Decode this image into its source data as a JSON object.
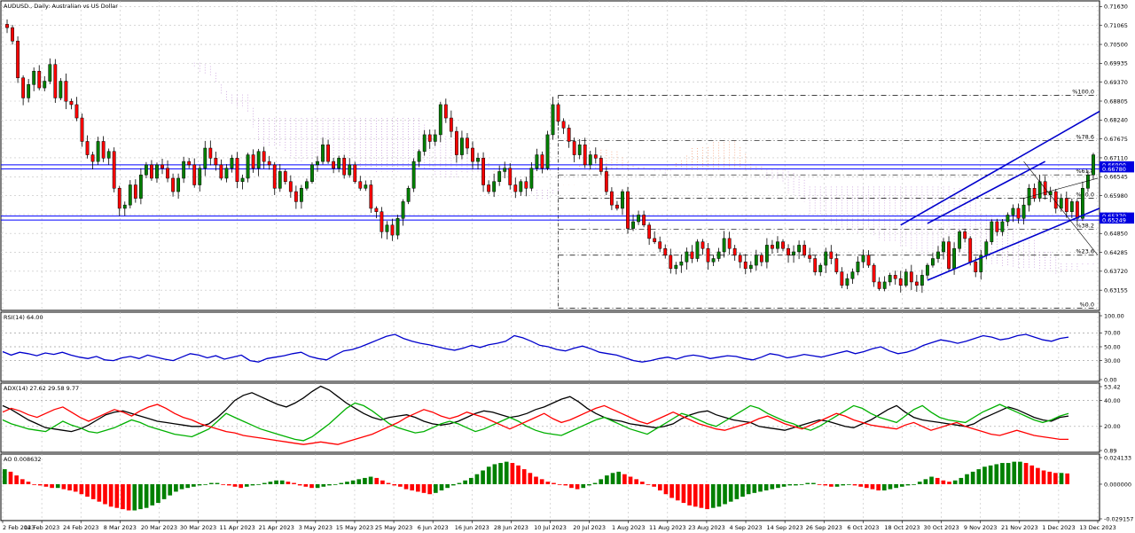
{
  "chart_data": [
    {
      "type": "candlestick",
      "title": "AUDUSD., Daily:  Australian vs US Dollar",
      "ylim": [
        0.6255,
        0.718
      ],
      "y_ticks": [
        "0.71630",
        "0.71065",
        "0.70500",
        "0.69935",
        "0.69370",
        "0.68805",
        "0.68240",
        "0.67675",
        "0.67110",
        "0.66545",
        "0.65980",
        "0.65415",
        "0.64850",
        "0.64285",
        "0.63720",
        "0.63155"
      ],
      "x_ticks": [
        "2 Feb 2023",
        "14 Feb 2023",
        "24 Feb 2023",
        "8 Mar 2023",
        "20 Mar 2023",
        "30 Mar 2023",
        "11 Apr 2023",
        "21 Apr 2023",
        "3 May 2023",
        "15 May 2023",
        "25 May 2023",
        "6 Jun 2023",
        "16 Jun 2023",
        "28 Jun 2023",
        "10 Jul 2023",
        "20 Jul 2023",
        "1 Aug 2023",
        "11 Aug 2023",
        "23 Aug 2023",
        "4 Sep 2023",
        "14 Sep 2023",
        "26 Sep 2023",
        "6 Oct 2023",
        "18 Oct 2023",
        "30 Oct 2023",
        "9 Nov 2023",
        "21 Nov 2023",
        "1 Dec 2023",
        "13 Dec 2023"
      ],
      "closes": [
        0.71,
        0.706,
        0.695,
        0.689,
        0.693,
        0.697,
        0.692,
        0.694,
        0.699,
        0.689,
        0.694,
        0.688,
        0.687,
        0.683,
        0.676,
        0.672,
        0.67,
        0.676,
        0.671,
        0.673,
        0.662,
        0.656,
        0.657,
        0.663,
        0.659,
        0.666,
        0.669,
        0.665,
        0.669,
        0.668,
        0.665,
        0.661,
        0.665,
        0.67,
        0.669,
        0.663,
        0.668,
        0.674,
        0.671,
        0.669,
        0.665,
        0.668,
        0.671,
        0.664,
        0.665,
        0.672,
        0.668,
        0.673,
        0.67,
        0.669,
        0.662,
        0.667,
        0.664,
        0.661,
        0.658,
        0.662,
        0.664,
        0.669,
        0.67,
        0.675,
        0.67,
        0.668,
        0.671,
        0.666,
        0.669,
        0.664,
        0.662,
        0.663,
        0.656,
        0.655,
        0.649,
        0.651,
        0.648,
        0.653,
        0.658,
        0.662,
        0.67,
        0.673,
        0.678,
        0.676,
        0.678,
        0.687,
        0.683,
        0.679,
        0.672,
        0.677,
        0.674,
        0.67,
        0.671,
        0.663,
        0.661,
        0.664,
        0.667,
        0.668,
        0.663,
        0.661,
        0.664,
        0.662,
        0.668,
        0.672,
        0.668,
        0.678,
        0.687,
        0.682,
        0.68,
        0.676,
        0.672,
        0.675,
        0.669,
        0.672,
        0.671,
        0.667,
        0.661,
        0.657,
        0.656,
        0.661,
        0.65,
        0.652,
        0.654,
        0.651,
        0.647,
        0.646,
        0.644,
        0.642,
        0.638,
        0.639,
        0.64,
        0.643,
        0.641,
        0.646,
        0.644,
        0.64,
        0.641,
        0.643,
        0.647,
        0.644,
        0.642,
        0.64,
        0.638,
        0.639,
        0.642,
        0.64,
        0.645,
        0.644,
        0.646,
        0.644,
        0.642,
        0.643,
        0.645,
        0.642,
        0.641,
        0.637,
        0.639,
        0.643,
        0.641,
        0.637,
        0.633,
        0.635,
        0.637,
        0.64,
        0.642,
        0.639,
        0.634,
        0.632,
        0.634,
        0.636,
        0.635,
        0.633,
        0.637,
        0.634,
        0.633,
        0.636,
        0.639,
        0.641,
        0.643,
        0.646,
        0.638,
        0.644,
        0.649,
        0.647,
        0.64,
        0.637,
        0.642,
        0.646,
        0.652,
        0.649,
        0.652,
        0.654,
        0.656,
        0.653,
        0.657,
        0.662,
        0.659,
        0.664,
        0.66,
        0.661,
        0.656,
        0.659,
        0.655,
        0.658,
        0.653,
        0.662,
        0.666,
        0.672
      ],
      "vol_index_label": "",
      "horizontal_levels": [
        {
          "label": "0.66900",
          "value": 0.669
        },
        {
          "label": "0.66780",
          "value": 0.6678
        },
        {
          "label": "0.65370",
          "value": 0.6537
        },
        {
          "label": "0.65249",
          "value": 0.6525
        }
      ],
      "fibonacci": [
        {
          "label": "%100.0",
          "value": 0.6898
        },
        {
          "label": "%78.6",
          "value": 0.6762
        },
        {
          "label": "%61.8",
          "value": 0.666
        },
        {
          "label": "%50.0",
          "value": 0.659
        },
        {
          "label": "%38.2",
          "value": 0.6498
        },
        {
          "label": "%23.6",
          "value": 0.642
        },
        {
          "label": "%0.0",
          "value": 0.6262
        }
      ],
      "colors": {
        "up": "#008000",
        "down": "#ff0000",
        "wick": "#000000",
        "channel": "#0000cc",
        "levels": "#0000ff",
        "cloud": "#f4a582",
        "cloud_alt": "#c9a0dc"
      }
    },
    {
      "type": "line",
      "title": "RSI(14) 64.00",
      "ylim": [
        0,
        100
      ],
      "y_ticks": [
        "100.00",
        "70.00",
        "50.00",
        "30.00",
        "0.00"
      ],
      "levels": [
        70,
        50,
        30
      ],
      "series": [
        {
          "values": [
            43,
            38,
            42,
            40,
            37,
            41,
            39,
            42,
            38,
            35,
            33,
            36,
            31,
            30,
            34,
            36,
            33,
            38,
            35,
            32,
            30,
            35,
            40,
            38,
            34,
            37,
            32,
            35,
            38,
            30,
            28,
            33,
            35,
            37,
            40,
            42,
            36,
            33,
            31,
            38,
            44,
            46,
            50,
            55,
            60,
            65,
            68,
            62,
            58,
            55,
            53,
            50,
            47,
            45,
            48,
            52,
            49,
            53,
            55,
            58,
            66,
            63,
            58,
            52,
            50,
            46,
            44,
            48,
            51,
            47,
            42,
            40,
            38,
            34,
            30,
            28,
            30,
            33,
            35,
            32,
            36,
            38,
            36,
            33,
            35,
            37,
            36,
            33,
            31,
            35,
            40,
            38,
            34,
            36,
            39,
            37,
            35,
            38,
            41,
            44,
            40,
            43,
            47,
            50,
            44,
            40,
            42,
            46,
            52,
            56,
            60,
            58,
            55,
            58,
            62,
            66,
            64,
            60,
            62,
            66,
            68,
            64,
            60,
            58,
            62,
            64
          ]
        }
      ],
      "colors": {
        "line": "#0000cc"
      }
    },
    {
      "type": "line",
      "title": "ADX(14) 27.62 29.58 9.77",
      "ylim": [
        0,
        53.42
      ],
      "y_ticks": [
        "53.42",
        "40.00",
        "20.00",
        "0.89"
      ],
      "levels": [
        40,
        20
      ],
      "series": [
        {
          "values": [
            36,
            33,
            29,
            25,
            22,
            19,
            18,
            17,
            16,
            18,
            21,
            25,
            29,
            31,
            32,
            30,
            28,
            26,
            24,
            23,
            22,
            21,
            20,
            20,
            22,
            27,
            33,
            40,
            44,
            46,
            43,
            40,
            37,
            35,
            38,
            42,
            47,
            51,
            48,
            43,
            38,
            34,
            30,
            27,
            25,
            27,
            28,
            29,
            27,
            24,
            22,
            21,
            22,
            24,
            27,
            30,
            32,
            31,
            29,
            27,
            28,
            30,
            33,
            35,
            38,
            41,
            43,
            39,
            34,
            30,
            27,
            25,
            24,
            22,
            21,
            20,
            19,
            20,
            22,
            26,
            29,
            31,
            32,
            29,
            27,
            25,
            24,
            23,
            20,
            19,
            18,
            17,
            19,
            21,
            23,
            25,
            24,
            22,
            20,
            19,
            22,
            25,
            29,
            33,
            36,
            31,
            27,
            25,
            24,
            23,
            22,
            21,
            20,
            22,
            26,
            29,
            32,
            35,
            33,
            30,
            27,
            25,
            24,
            27,
            28
          ]
        },
        {
          "values": [
            25,
            22,
            20,
            18,
            17,
            16,
            20,
            24,
            21,
            19,
            16,
            15,
            17,
            19,
            22,
            25,
            23,
            20,
            18,
            16,
            14,
            13,
            12,
            15,
            18,
            24,
            30,
            27,
            24,
            21,
            18,
            16,
            14,
            12,
            10,
            9,
            12,
            17,
            22,
            28,
            34,
            38,
            36,
            32,
            27,
            22,
            19,
            17,
            15,
            16,
            19,
            22,
            24,
            22,
            19,
            16,
            18,
            21,
            24,
            27,
            24,
            20,
            17,
            15,
            14,
            13,
            16,
            19,
            22,
            25,
            27,
            24,
            21,
            18,
            16,
            14,
            18,
            22,
            26,
            30,
            28,
            25,
            22,
            20,
            24,
            28,
            32,
            36,
            34,
            30,
            27,
            24,
            22,
            19,
            17,
            20,
            24,
            28,
            32,
            36,
            34,
            30,
            27,
            25,
            23,
            28,
            33,
            36,
            31,
            27,
            25,
            24,
            23,
            27,
            31,
            34,
            37,
            34,
            31,
            28,
            25,
            23,
            25,
            28,
            30
          ]
        },
        {
          "values": [
            31,
            34,
            32,
            29,
            27,
            30,
            33,
            35,
            31,
            27,
            24,
            27,
            30,
            33,
            31,
            28,
            32,
            35,
            37,
            34,
            30,
            27,
            25,
            22,
            20,
            18,
            16,
            15,
            13,
            12,
            11,
            10,
            9,
            8,
            7,
            6,
            7,
            8,
            7,
            6,
            8,
            10,
            12,
            14,
            17,
            20,
            23,
            27,
            30,
            33,
            31,
            28,
            26,
            28,
            31,
            29,
            27,
            24,
            21,
            18,
            21,
            24,
            27,
            30,
            26,
            23,
            25,
            28,
            31,
            34,
            36,
            33,
            30,
            27,
            24,
            22,
            25,
            28,
            31,
            28,
            25,
            22,
            20,
            18,
            17,
            19,
            21,
            23,
            26,
            28,
            25,
            22,
            20,
            18,
            21,
            24,
            27,
            30,
            28,
            25,
            23,
            21,
            20,
            19,
            18,
            21,
            23,
            20,
            17,
            19,
            21,
            23,
            20,
            18,
            16,
            14,
            13,
            15,
            17,
            15,
            13,
            12,
            11,
            10,
            10
          ]
        }
      ],
      "colors": {
        "adx": "#000000",
        "plus_di": "#00b000",
        "minus_di": "#ff0000"
      }
    },
    {
      "type": "bar",
      "title": "AO 0.008632",
      "ylim": [
        -0.029157,
        0.024133
      ],
      "y_ticks": [
        "0.024133",
        "0.000000",
        "-0.029157"
      ],
      "values": [
        0.012,
        0.01,
        0.007,
        0.004,
        0.002,
        0.0,
        -0.001,
        -0.002,
        -0.003,
        -0.003,
        -0.004,
        -0.005,
        -0.006,
        -0.008,
        -0.01,
        -0.012,
        -0.014,
        -0.016,
        -0.018,
        -0.019,
        -0.02,
        -0.021,
        -0.021,
        -0.02,
        -0.019,
        -0.017,
        -0.015,
        -0.012,
        -0.009,
        -0.006,
        -0.004,
        -0.003,
        -0.002,
        -0.001,
        0.0,
        0.001,
        0.001,
        0.0,
        -0.001,
        -0.002,
        -0.003,
        -0.002,
        -0.001,
        0.0,
        0.001,
        0.002,
        0.003,
        0.003,
        0.002,
        0.001,
        -0.001,
        -0.002,
        -0.003,
        -0.003,
        -0.002,
        -0.001,
        0.0,
        0.001,
        0.002,
        0.003,
        0.004,
        0.005,
        0.006,
        0.005,
        0.003,
        0.001,
        -0.001,
        -0.002,
        -0.004,
        -0.005,
        -0.006,
        -0.007,
        -0.008,
        -0.007,
        -0.005,
        -0.003,
        -0.001,
        0.001,
        0.003,
        0.005,
        0.008,
        0.011,
        0.014,
        0.016,
        0.017,
        0.018,
        0.017,
        0.015,
        0.012,
        0.009,
        0.006,
        0.004,
        0.002,
        0.001,
        0.0,
        -0.001,
        -0.003,
        -0.004,
        -0.003,
        -0.001,
        0.001,
        0.004,
        0.007,
        0.009,
        0.01,
        0.008,
        0.006,
        0.004,
        0.002,
        0.0,
        -0.002,
        -0.005,
        -0.008,
        -0.011,
        -0.013,
        -0.015,
        -0.017,
        -0.018,
        -0.019,
        -0.02,
        -0.019,
        -0.018,
        -0.016,
        -0.014,
        -0.012,
        -0.01,
        -0.008,
        -0.007,
        -0.006,
        -0.005,
        -0.004,
        -0.003,
        -0.002,
        -0.001,
        -0.001,
        0.0,
        0.001,
        0.001,
        0.0,
        -0.001,
        -0.002,
        -0.002,
        -0.001,
        0.0,
        -0.001,
        -0.002,
        -0.003,
        -0.004,
        -0.005,
        -0.005,
        -0.004,
        -0.003,
        -0.002,
        -0.001,
        0.0,
        0.002,
        0.004,
        0.006,
        0.005,
        0.003,
        0.002,
        0.003,
        0.005,
        0.008,
        0.01,
        0.012,
        0.014,
        0.015,
        0.016,
        0.017,
        0.017,
        0.018,
        0.018,
        0.017,
        0.015,
        0.013,
        0.011,
        0.01,
        0.009,
        0.009,
        0.0086
      ],
      "colors": {
        "up": "#008000",
        "down": "#ff0000"
      }
    }
  ]
}
